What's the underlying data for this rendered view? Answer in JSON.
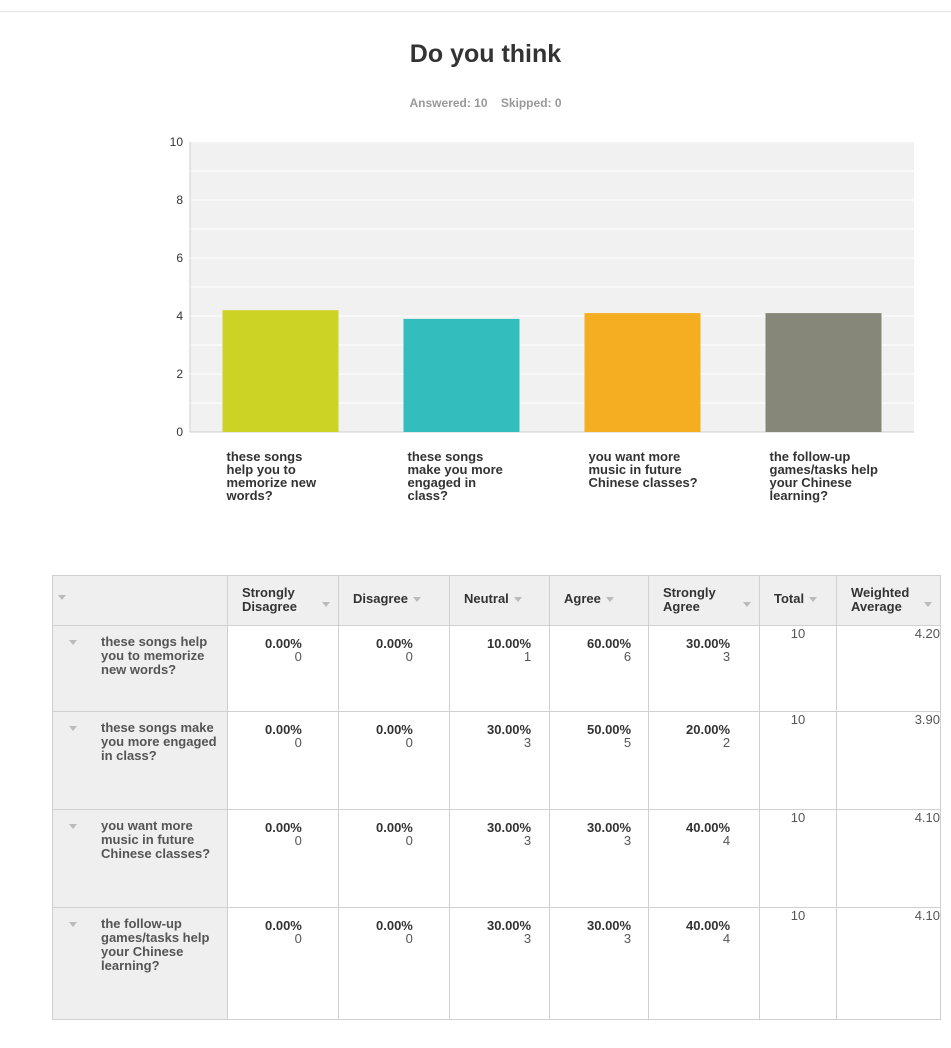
{
  "title": "Do you think",
  "stats": {
    "answered": "Answered: 10",
    "skipped": "Skipped: 0"
  },
  "chart_data": {
    "type": "bar",
    "categories": [
      "these songs help you to memorize new words?",
      "these songs make you more engaged in class?",
      "you want more music in future Chinese classes?",
      "the follow-up games/tasks help your Chinese learning?"
    ],
    "category_lines": [
      [
        "these songs",
        "help you to",
        "memorize new",
        "words?"
      ],
      [
        "these songs",
        "make you more",
        "engaged in",
        "class?"
      ],
      [
        "you want more",
        "music in future",
        "Chinese classes?"
      ],
      [
        "the follow-up",
        "games/tasks help",
        "your Chinese",
        "learning?"
      ]
    ],
    "values": [
      4.2,
      3.9,
      4.1,
      4.1
    ],
    "colors": [
      "#cdd325",
      "#33bdbc",
      "#f5ae21",
      "#878779"
    ],
    "ylim": [
      0,
      10
    ],
    "yticks": [
      "0",
      "2",
      "4",
      "6",
      "8",
      "10"
    ],
    "grid": true,
    "plot_bg": "#f1f1f1"
  },
  "table": {
    "headers": [
      "Strongly Disagree",
      "Disagree",
      "Neutral",
      "Agree",
      "Strongly Agree",
      "Total",
      "Weighted Average"
    ],
    "rows": [
      {
        "label": "these songs help you to memorize new words?",
        "cells": [
          [
            "0.00%",
            "0"
          ],
          [
            "0.00%",
            "0"
          ],
          [
            "10.00%",
            "1"
          ],
          [
            "60.00%",
            "6"
          ],
          [
            "30.00%",
            "3"
          ]
        ],
        "total": "10",
        "avg": "4.20"
      },
      {
        "label": "these songs make you more engaged in class?",
        "cells": [
          [
            "0.00%",
            "0"
          ],
          [
            "0.00%",
            "0"
          ],
          [
            "30.00%",
            "3"
          ],
          [
            "50.00%",
            "5"
          ],
          [
            "20.00%",
            "2"
          ]
        ],
        "total": "10",
        "avg": "3.90"
      },
      {
        "label": "you want more music in future Chinese classes?",
        "cells": [
          [
            "0.00%",
            "0"
          ],
          [
            "0.00%",
            "0"
          ],
          [
            "30.00%",
            "3"
          ],
          [
            "30.00%",
            "3"
          ],
          [
            "40.00%",
            "4"
          ]
        ],
        "total": "10",
        "avg": "4.10"
      },
      {
        "label": "the follow-up games/tasks help your Chinese learning?",
        "cells": [
          [
            "0.00%",
            "0"
          ],
          [
            "0.00%",
            "0"
          ],
          [
            "30.00%",
            "3"
          ],
          [
            "30.00%",
            "3"
          ],
          [
            "40.00%",
            "4"
          ]
        ],
        "total": "10",
        "avg": "4.10"
      }
    ]
  }
}
